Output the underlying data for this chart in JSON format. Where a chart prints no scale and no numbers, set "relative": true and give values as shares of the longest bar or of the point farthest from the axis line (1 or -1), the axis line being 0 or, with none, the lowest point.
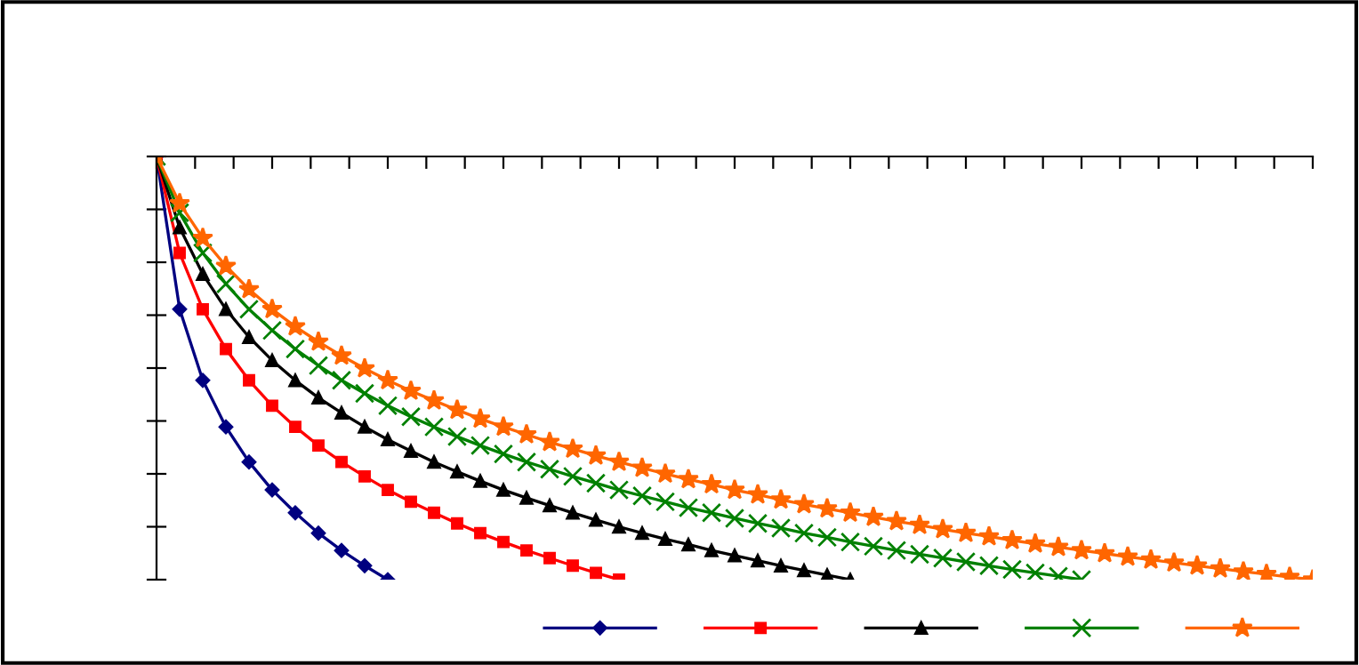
{
  "chart_data": {
    "type": "line",
    "relative": true,
    "grid": false,
    "categories": [
      null,
      null,
      null,
      null,
      null,
      null,
      null,
      null,
      null,
      null,
      null,
      null,
      null,
      null,
      null,
      null,
      null,
      null,
      null,
      null,
      null,
      null,
      null,
      null,
      null,
      null,
      null,
      null,
      null,
      null,
      null,
      null,
      null,
      null,
      null,
      null,
      null,
      null,
      null,
      null,
      null,
      null,
      null,
      null,
      null,
      null,
      null,
      null,
      null,
      null,
      null
    ],
    "series": [
      {
        "color": "#000080",
        "marker": "diamond",
        "values": [
          0,
          -0.361,
          -0.529,
          -0.639,
          -0.722,
          -0.788,
          -0.842,
          -0.89,
          -0.931,
          -0.967,
          -1,
          null,
          null,
          null,
          null,
          null,
          null,
          null,
          null,
          null,
          null,
          null,
          null,
          null,
          null,
          null,
          null,
          null,
          null,
          null,
          null,
          null,
          null,
          null,
          null,
          null,
          null,
          null,
          null,
          null,
          null,
          null,
          null,
          null,
          null,
          null,
          null,
          null,
          null,
          null,
          null
        ]
      },
      {
        "color": "#ff0000",
        "marker": "square",
        "values": [
          0,
          -0.228,
          -0.361,
          -0.455,
          -0.529,
          -0.589,
          -0.639,
          -0.683,
          -0.722,
          -0.756,
          -0.788,
          -0.816,
          -0.842,
          -0.867,
          -0.89,
          -0.911,
          -0.931,
          -0.949,
          -0.967,
          -0.984,
          -1,
          null,
          null,
          null,
          null,
          null,
          null,
          null,
          null,
          null,
          null,
          null,
          null,
          null,
          null,
          null,
          null,
          null,
          null,
          null,
          null,
          null,
          null,
          null,
          null,
          null,
          null,
          null,
          null,
          null,
          null
        ]
      },
      {
        "color": "#000000",
        "marker": "triangle",
        "values": [
          0,
          -0.168,
          -0.278,
          -0.361,
          -0.427,
          -0.482,
          -0.529,
          -0.57,
          -0.606,
          -0.639,
          -0.669,
          -0.696,
          -0.722,
          -0.745,
          -0.767,
          -0.788,
          -0.807,
          -0.825,
          -0.842,
          -0.859,
          -0.875,
          -0.89,
          -0.904,
          -0.917,
          -0.931,
          -0.943,
          -0.955,
          -0.967,
          -0.978,
          -0.989,
          -1,
          null,
          null,
          null,
          null,
          null,
          null,
          null,
          null,
          null,
          null,
          null,
          null,
          null,
          null,
          null,
          null,
          null,
          null,
          null,
          null
        ]
      },
      {
        "color": "#008000",
        "marker": "cross",
        "values": [
          0,
          -0.133,
          -0.228,
          -0.301,
          -0.361,
          -0.411,
          -0.455,
          -0.494,
          -0.529,
          -0.56,
          -0.589,
          -0.615,
          -0.639,
          -0.662,
          -0.683,
          -0.703,
          -0.722,
          -0.739,
          -0.756,
          -0.772,
          -0.788,
          -0.802,
          -0.816,
          -0.83,
          -0.842,
          -0.855,
          -0.867,
          -0.878,
          -0.89,
          -0.9,
          -0.911,
          -0.921,
          -0.931,
          -0.94,
          -0.949,
          -0.958,
          -0.967,
          -0.976,
          -0.984,
          -0.992,
          -1,
          null,
          null,
          null,
          null,
          null,
          null,
          null,
          null,
          null,
          null
        ]
      },
      {
        "color": "#ff6600",
        "marker": "star",
        "values": [
          0,
          -0.111,
          -0.193,
          -0.259,
          -0.314,
          -0.361,
          -0.402,
          -0.438,
          -0.471,
          -0.501,
          -0.529,
          -0.554,
          -0.577,
          -0.599,
          -0.62,
          -0.639,
          -0.657,
          -0.675,
          -0.691,
          -0.707,
          -0.722,
          -0.736,
          -0.75,
          -0.763,
          -0.775,
          -0.788,
          -0.799,
          -0.811,
          -0.822,
          -0.832,
          -0.842,
          -0.852,
          -0.862,
          -0.871,
          -0.881,
          -0.89,
          -0.898,
          -0.907,
          -0.915,
          -0.923,
          -0.931,
          -0.938,
          -0.946,
          -0.953,
          -0.96,
          -0.967,
          -0.974,
          -0.981,
          -0.987,
          -0.994,
          -1
        ]
      }
    ]
  }
}
